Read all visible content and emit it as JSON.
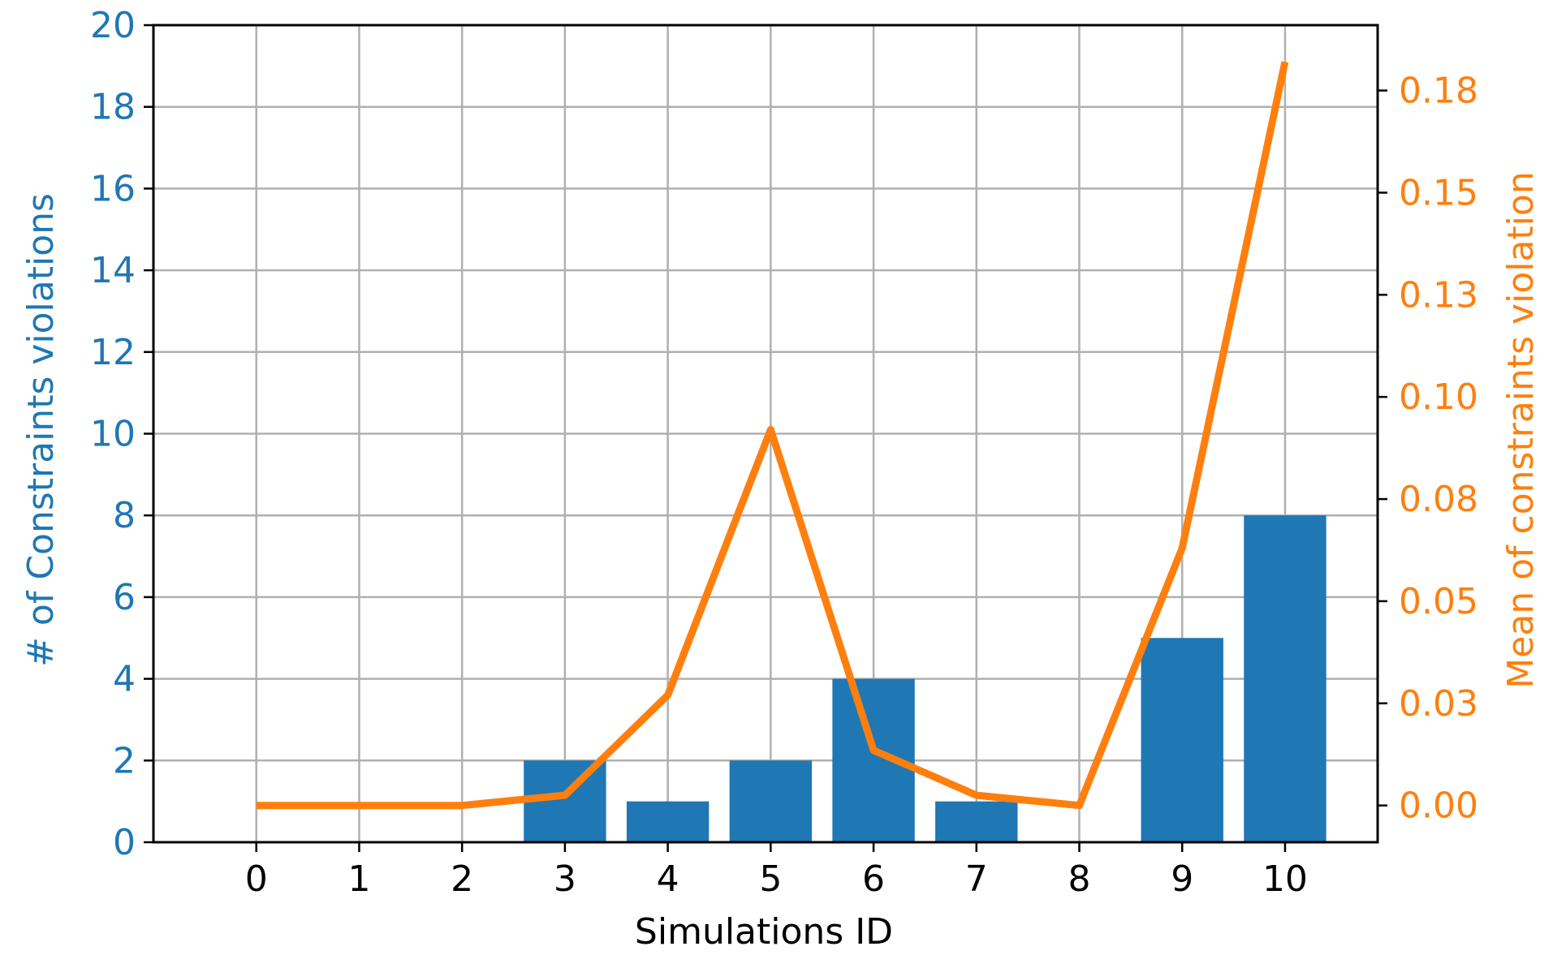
{
  "colors": {
    "bars": "#1f77b4",
    "line": "#ff7f0e",
    "grid": "#b0b0b0",
    "axis": "#000000",
    "left_axis_text": "#1f77b4",
    "right_axis_text": "#ff7f0e"
  },
  "chart_data": {
    "type": "bar",
    "grid": true,
    "x": [
      0,
      1,
      2,
      3,
      4,
      5,
      6,
      7,
      8,
      9,
      10
    ],
    "x_ticks": [
      "0",
      "1",
      "2",
      "3",
      "4",
      "5",
      "6",
      "7",
      "8",
      "9",
      "10"
    ],
    "xlabel": "Simulations ID",
    "xlim": [
      -1.0,
      10.9
    ],
    "ylabel_left": "# of Constraints violations",
    "ylim_left": [
      0,
      20
    ],
    "yticks_left": [
      "0",
      "2",
      "4",
      "6",
      "8",
      "10",
      "12",
      "14",
      "16",
      "18",
      "20"
    ],
    "ylabel_right": "Mean of constraints violation",
    "ylim_right": [
      -0.009,
      0.191
    ],
    "yticks_right": [
      "0.00",
      "0.03",
      "0.05",
      "0.08",
      "0.10",
      "0.13",
      "0.15",
      "0.18"
    ],
    "yticks_right_values": [
      0.0,
      0.025,
      0.05,
      0.075,
      0.1,
      0.125,
      0.15,
      0.175
    ],
    "series": [
      {
        "kind": "bar",
        "axis": "left",
        "values": [
          0,
          0,
          0,
          2,
          1,
          2,
          4,
          1,
          0,
          5,
          8
        ]
      },
      {
        "kind": "line",
        "axis": "right",
        "values": [
          0.0,
          0.0,
          0.0,
          0.0025,
          0.027,
          0.092,
          0.0135,
          0.0025,
          0.0,
          0.063,
          0.182
        ]
      }
    ]
  }
}
